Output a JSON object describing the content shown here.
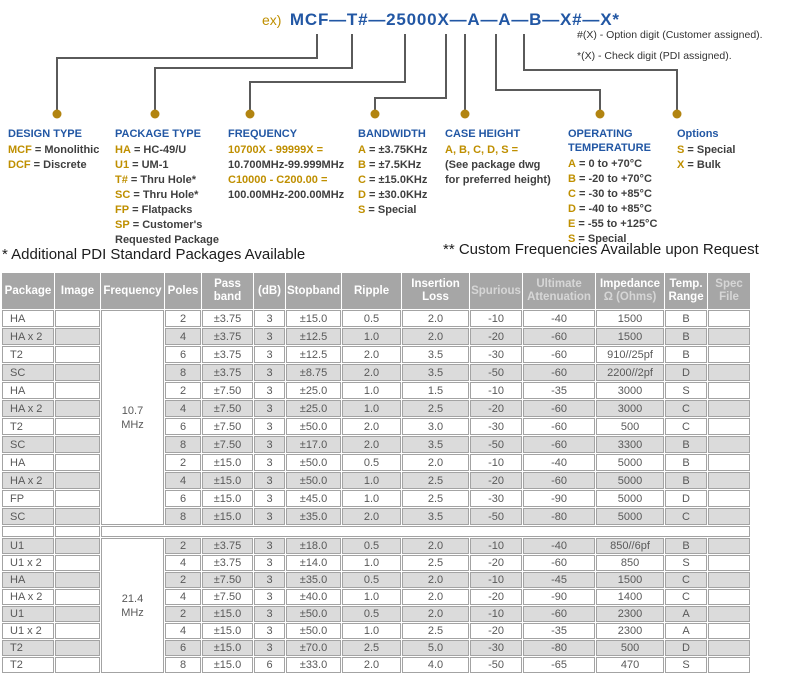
{
  "part_number": {
    "prefix": "ex)",
    "example": "MCF—T#—25000X—A—A—B—X#—X*",
    "notes": [
      "#(X) - Option digit (Customer assigned).",
      "*(X) - Check digit (PDI assigned)."
    ]
  },
  "legend": [
    {
      "title": "DESIGN TYPE",
      "lines": [
        [
          "MCF",
          "Monolithic"
        ],
        [
          "DCF",
          "Discrete"
        ]
      ]
    },
    {
      "title": "PACKAGE TYPE",
      "lines": [
        [
          "HA",
          "HC-49/U"
        ],
        [
          "U1",
          "UM-1"
        ],
        [
          "T#",
          "Thru Hole*"
        ],
        [
          "SC",
          "Thru Hole*"
        ],
        [
          "FP",
          "Flatpacks"
        ],
        [
          "SP",
          "Customer's"
        ],
        [
          "",
          "Requested Package"
        ]
      ]
    },
    {
      "title": "FREQUENCY",
      "lines": [
        [
          "10700X - 99999X =",
          ""
        ],
        [
          "",
          "10.700MHz-99.999MHz"
        ],
        [
          "C10000 - C200.00 =",
          ""
        ],
        [
          "",
          "100.00MHz-200.00MHz"
        ]
      ]
    },
    {
      "title": "BANDWIDTH",
      "lines": [
        [
          "A",
          "±3.75KHz"
        ],
        [
          "B",
          "±7.5KHz"
        ],
        [
          "C",
          "±15.0KHz"
        ],
        [
          "D",
          "±30.0KHz"
        ],
        [
          "S",
          "Special"
        ]
      ]
    },
    {
      "title": "CASE HEIGHT",
      "lines": [
        [
          "A, B, C, D, S =",
          ""
        ],
        [
          "",
          "(See package dwg"
        ],
        [
          "",
          "for preferred height)"
        ]
      ]
    },
    {
      "title": "OPERATING TEMPERATURE",
      "lines": [
        [
          "A",
          "0 to +70°C"
        ],
        [
          "B",
          "-20 to +70°C"
        ],
        [
          "C",
          "-30 to +85°C"
        ],
        [
          "D",
          "-40 to +85°C"
        ],
        [
          "E",
          "-55 to +125°C"
        ],
        [
          "S",
          "Special"
        ]
      ]
    },
    {
      "title": "Options",
      "lines": [
        [
          "S",
          "Special"
        ],
        [
          "X",
          "Bulk"
        ]
      ]
    }
  ],
  "footnotes": {
    "left": "* Additional PDI Standard Packages Available",
    "right": "** Custom Frequencies Available upon Request"
  },
  "table": {
    "columns": [
      {
        "lines": [
          "Package"
        ]
      },
      {
        "lines": [
          "Image"
        ]
      },
      {
        "lines": [
          "Frequency"
        ]
      },
      {
        "lines": [
          "Poles"
        ]
      },
      {
        "lines": [
          "Pass",
          "band"
        ]
      },
      {
        "lines": [
          "(dB)"
        ]
      },
      {
        "lines": [
          "Stopband"
        ]
      },
      {
        "lines": [
          "Ripple"
        ]
      },
      {
        "lines": [
          "Insertion",
          "Loss"
        ]
      },
      {
        "lines": [
          "Spurious"
        ],
        "dim": [
          true
        ]
      },
      {
        "lines": [
          "Ultimate",
          "Attenuation"
        ],
        "dim": [
          true,
          true
        ]
      },
      {
        "lines": [
          "Impedance",
          "Ω (Ohms)"
        ],
        "dim": [
          false,
          true
        ]
      },
      {
        "lines": [
          "Temp.",
          "Range"
        ]
      },
      {
        "lines": [
          "Spec",
          "File"
        ],
        "dim": [
          true,
          true
        ]
      }
    ],
    "groups": [
      {
        "frequency": [
          "10.7",
          "MHz"
        ],
        "rows": [
          [
            "HA",
            "2",
            "±3.75",
            "3",
            "±15.0",
            "0.5",
            "2.0",
            "-10",
            "-40",
            "1500",
            "B"
          ],
          [
            "HA x 2",
            "4",
            "±3.75",
            "3",
            "±12.5",
            "1.0",
            "2.0",
            "-20",
            "-60",
            "1500",
            "B"
          ],
          [
            "T2",
            "6",
            "±3.75",
            "3",
            "±12.5",
            "2.0",
            "3.5",
            "-30",
            "-60",
            "910//25pf",
            "B"
          ],
          [
            "SC",
            "8",
            "±3.75",
            "3",
            "±8.75",
            "2.0",
            "3.5",
            "-50",
            "-60",
            "2200//2pf",
            "D"
          ],
          [
            "HA",
            "2",
            "±7.50",
            "3",
            "±25.0",
            "1.0",
            "1.5",
            "-10",
            "-35",
            "3000",
            "S"
          ],
          [
            "HA x 2",
            "4",
            "±7.50",
            "3",
            "±25.0",
            "1.0",
            "2.5",
            "-20",
            "-60",
            "3000",
            "C"
          ],
          [
            "T2",
            "6",
            "±7.50",
            "3",
            "±50.0",
            "2.0",
            "3.0",
            "-30",
            "-60",
            "500",
            "C"
          ],
          [
            "SC",
            "8",
            "±7.50",
            "3",
            "±17.0",
            "2.0",
            "3.5",
            "-50",
            "-60",
            "3300",
            "B"
          ],
          [
            "HA",
            "2",
            "±15.0",
            "3",
            "±50.0",
            "0.5",
            "2.0",
            "-10",
            "-40",
            "5000",
            "B"
          ],
          [
            "HA x 2",
            "4",
            "±15.0",
            "3",
            "±50.0",
            "1.0",
            "2.5",
            "-20",
            "-60",
            "5000",
            "B"
          ],
          [
            "FP",
            "6",
            "±15.0",
            "3",
            "±45.0",
            "1.0",
            "2.5",
            "-30",
            "-90",
            "5000",
            "D"
          ],
          [
            "SC",
            "8",
            "±15.0",
            "3",
            "±35.0",
            "2.0",
            "3.5",
            "-50",
            "-80",
            "5000",
            "C"
          ]
        ]
      },
      {
        "frequency": [
          "21.4",
          "MHz"
        ],
        "rows": [
          [
            "U1",
            "2",
            "±3.75",
            "3",
            "±18.0",
            "0.5",
            "2.0",
            "-10",
            "-40",
            "850//6pf",
            "B"
          ],
          [
            "U1 x 2",
            "4",
            "±3.75",
            "3",
            "±14.0",
            "1.0",
            "2.5",
            "-20",
            "-60",
            "850",
            "S"
          ],
          [
            "HA",
            "2",
            "±7.50",
            "3",
            "±35.0",
            "0.5",
            "2.0",
            "-10",
            "-45",
            "1500",
            "C"
          ],
          [
            "HA x 2",
            "4",
            "±7.50",
            "3",
            "±40.0",
            "1.0",
            "2.0",
            "-20",
            "-90",
            "1400",
            "C"
          ],
          [
            "U1",
            "2",
            "±15.0",
            "3",
            "±50.0",
            "0.5",
            "2.0",
            "-10",
            "-60",
            "2300",
            "A"
          ],
          [
            "U1 x 2",
            "4",
            "±15.0",
            "3",
            "±50.0",
            "1.0",
            "2.5",
            "-20",
            "-35",
            "2300",
            "A"
          ],
          [
            "T2",
            "6",
            "±15.0",
            "3",
            "±70.0",
            "2.5",
            "5.0",
            "-30",
            "-80",
            "500",
            "D"
          ],
          [
            "T2",
            "8",
            "±15.0",
            "6",
            "±33.0",
            "2.0",
            "4.0",
            "-50",
            "-65",
            "470",
            "S"
          ]
        ]
      }
    ]
  },
  "colors": {
    "blue": "#2257A4",
    "gold": "#BF8F00",
    "dot": "#B28410",
    "line": "#5A5A5A",
    "header_bg": "#A6A6A6",
    "row_shade": "#DBDBDB"
  }
}
